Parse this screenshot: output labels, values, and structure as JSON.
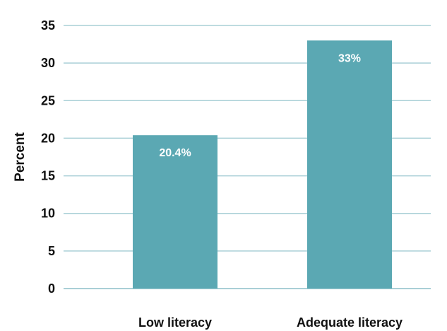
{
  "chart_data": {
    "type": "bar",
    "categories": [
      "Low literacy",
      "Adequate literacy"
    ],
    "values": [
      20.4,
      33
    ],
    "data_labels": [
      "20.4%",
      "33%"
    ],
    "ylabel": "Percent",
    "xlabel": "",
    "ylim": [
      0,
      35
    ],
    "yticks": [
      0,
      5,
      10,
      15,
      20,
      25,
      30,
      35
    ],
    "grid": true,
    "bar_color": "#5ba8b3",
    "grid_color": "#a9cfd6"
  }
}
